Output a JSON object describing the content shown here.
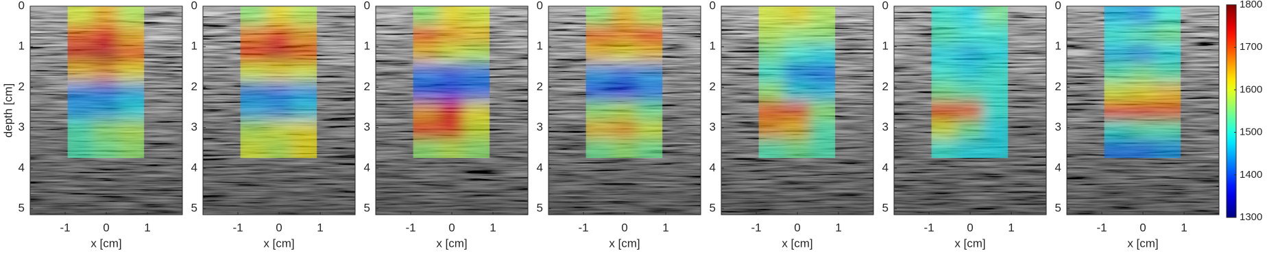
{
  "chart_data": [
    {
      "type": "heatmap",
      "xlabel": "x [cm]",
      "ylabel": "depth [cm]",
      "xlim": [
        -1.85,
        1.85
      ],
      "ylim": [
        0,
        5.15
      ],
      "xticks": [
        -1,
        0,
        1
      ],
      "yticks": [
        0,
        1,
        2,
        3,
        4,
        5
      ],
      "overlay_xlim": [
        -0.94,
        0.92
      ],
      "overlay_ylim": [
        0,
        3.75
      ],
      "values": [
        [
          1600,
          1650,
          1580
        ],
        [
          1700,
          1740,
          1650
        ],
        [
          1760,
          1770,
          1700
        ],
        [
          1640,
          1660,
          1620
        ],
        [
          1430,
          1420,
          1450
        ],
        [
          1440,
          1450,
          1480
        ],
        [
          1520,
          1560,
          1580
        ],
        [
          1520,
          1540,
          1560
        ]
      ]
    },
    {
      "type": "heatmap",
      "xlabel": "x [cm]",
      "xlim": [
        -1.85,
        1.85
      ],
      "ylim": [
        0,
        5.15
      ],
      "xticks": [
        -1,
        0,
        1
      ],
      "yticks": [
        0,
        1,
        2,
        3,
        4,
        5
      ],
      "overlay_xlim": [
        -0.94,
        0.92
      ],
      "overlay_ylim": [
        0,
        3.75
      ],
      "values": [
        [
          1560,
          1620,
          1580
        ],
        [
          1680,
          1720,
          1660
        ],
        [
          1740,
          1760,
          1700
        ],
        [
          1600,
          1620,
          1600
        ],
        [
          1430,
          1420,
          1440
        ],
        [
          1450,
          1440,
          1470
        ],
        [
          1580,
          1600,
          1620
        ],
        [
          1600,
          1580,
          1620
        ]
      ]
    },
    {
      "type": "heatmap",
      "xlabel": "x [cm]",
      "xlim": [
        -1.85,
        1.85
      ],
      "ylim": [
        0,
        5.15
      ],
      "xticks": [
        -1,
        0,
        1
      ],
      "yticks": [
        0,
        1,
        2,
        3,
        4,
        5
      ],
      "overlay_xlim": [
        -0.94,
        0.92
      ],
      "overlay_ylim": [
        0,
        3.75
      ],
      "values": [
        [
          1560,
          1620,
          1600
        ],
        [
          1700,
          1660,
          1640
        ],
        [
          1640,
          1600,
          1580
        ],
        [
          1420,
          1400,
          1420
        ],
        [
          1400,
          1390,
          1410
        ],
        [
          1660,
          1720,
          1620
        ],
        [
          1720,
          1740,
          1600
        ],
        [
          1560,
          1580,
          1560
        ]
      ]
    },
    {
      "type": "heatmap",
      "xlabel": "x [cm]",
      "xlim": [
        -1.85,
        1.85
      ],
      "ylim": [
        0,
        5.15
      ],
      "xticks": [
        -1,
        0,
        1
      ],
      "yticks": [
        0,
        1,
        2,
        3,
        4,
        5
      ],
      "overlay_xlim": [
        -0.94,
        0.92
      ],
      "overlay_ylim": [
        0,
        3.75
      ],
      "values": [
        [
          1560,
          1640,
          1580
        ],
        [
          1690,
          1680,
          1720
        ],
        [
          1640,
          1620,
          1640
        ],
        [
          1440,
          1420,
          1440
        ],
        [
          1400,
          1380,
          1420
        ],
        [
          1560,
          1580,
          1540
        ],
        [
          1640,
          1660,
          1600
        ],
        [
          1540,
          1560,
          1540
        ]
      ]
    },
    {
      "type": "heatmap",
      "xlabel": "x [cm]",
      "xlim": [
        -1.85,
        1.85
      ],
      "ylim": [
        0,
        5.15
      ],
      "xticks": [
        -1,
        0,
        1
      ],
      "yticks": [
        0,
        1,
        2,
        3,
        4,
        5
      ],
      "overlay_xlim": [
        -0.94,
        0.92
      ],
      "overlay_ylim": [
        0,
        3.75
      ],
      "values": [
        [
          1600,
          1620,
          1580
        ],
        [
          1580,
          1560,
          1560
        ],
        [
          1540,
          1500,
          1480
        ],
        [
          1500,
          1430,
          1420
        ],
        [
          1560,
          1480,
          1460
        ],
        [
          1700,
          1700,
          1560
        ],
        [
          1660,
          1640,
          1520
        ],
        [
          1520,
          1540,
          1520
        ]
      ]
    },
    {
      "type": "heatmap",
      "xlabel": "x [cm]",
      "xlim": [
        -1.85,
        1.85
      ],
      "ylim": [
        0,
        5.15
      ],
      "xticks": [
        -1,
        0,
        1
      ],
      "yticks": [
        0,
        1,
        2,
        3,
        4,
        5
      ],
      "overlay_xlim": [
        -0.94,
        0.92
      ],
      "overlay_ylim": [
        0,
        3.75
      ],
      "values": [
        [
          1500,
          1480,
          1540
        ],
        [
          1520,
          1500,
          1500
        ],
        [
          1480,
          1460,
          1480
        ],
        [
          1500,
          1480,
          1500
        ],
        [
          1540,
          1520,
          1500
        ],
        [
          1720,
          1700,
          1500
        ],
        [
          1600,
          1540,
          1480
        ],
        [
          1500,
          1480,
          1480
        ]
      ]
    },
    {
      "type": "heatmap",
      "xlabel": "x [cm]",
      "xlim": [
        -1.85,
        1.85
      ],
      "ylim": [
        0,
        5.15
      ],
      "xticks": [
        -1,
        0,
        1
      ],
      "yticks": [
        0,
        1,
        2,
        3,
        4,
        5
      ],
      "overlay_xlim": [
        -0.94,
        0.92
      ],
      "overlay_ylim": [
        0,
        3.75
      ],
      "values": [
        [
          1460,
          1440,
          1500
        ],
        [
          1500,
          1520,
          1540
        ],
        [
          1460,
          1440,
          1480
        ],
        [
          1520,
          1540,
          1520
        ],
        [
          1600,
          1620,
          1640
        ],
        [
          1720,
          1740,
          1700
        ],
        [
          1500,
          1520,
          1520
        ],
        [
          1420,
          1420,
          1440
        ]
      ]
    }
  ],
  "colorbar": {
    "colormap": "jet",
    "clim": [
      1300,
      1800
    ],
    "ticks": [
      1300,
      1400,
      1500,
      1600,
      1700,
      1800
    ]
  }
}
